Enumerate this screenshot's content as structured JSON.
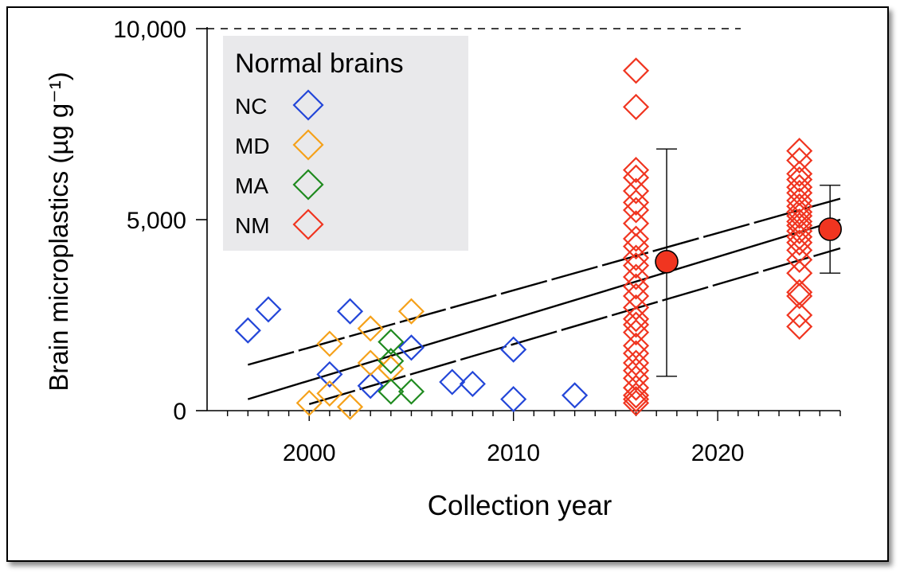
{
  "chart_data": {
    "type": "scatter",
    "xlabel": "Collection year",
    "ylabel": "Brain microplastics (µg g⁻¹)",
    "x_ticks": [
      2000,
      2010,
      2020
    ],
    "x_tick_labels": [
      "2000",
      "2010",
      "2020"
    ],
    "y_ticks": [
      0,
      5000,
      10000
    ],
    "y_tick_labels": [
      "0",
      "5,000",
      "10,000"
    ],
    "xlim": [
      1995,
      2026
    ],
    "ylim": [
      0,
      10000
    ],
    "grid": false,
    "legend": {
      "title": "Normal brains",
      "position": "top-left"
    },
    "series": [
      {
        "name": "NC",
        "color": "#2346d8",
        "marker": "diamond-open",
        "x": [
          1997,
          1998,
          2001,
          2002,
          2003,
          2005,
          2007,
          2008,
          2010,
          2010,
          2013
        ],
        "y": [
          2100,
          2650,
          950,
          2600,
          650,
          1650,
          750,
          700,
          1600,
          300,
          400
        ]
      },
      {
        "name": "MD",
        "color": "#f5a11a",
        "marker": "diamond-open",
        "x": [
          2000,
          2001,
          2001,
          2002,
          2003,
          2003,
          2004,
          2005
        ],
        "y": [
          200,
          1750,
          450,
          100,
          2150,
          1250,
          1100,
          2600
        ]
      },
      {
        "name": "MA",
        "color": "#1f8a1f",
        "marker": "diamond-open",
        "x": [
          2004,
          2004,
          2004,
          2005
        ],
        "y": [
          1800,
          1300,
          500,
          500
        ]
      },
      {
        "name": "NM",
        "color": "#f03520",
        "marker": "diamond-open",
        "x": [
          2016,
          2016,
          2016,
          2016,
          2016,
          2016,
          2016,
          2016,
          2016,
          2016,
          2016,
          2016,
          2016,
          2016,
          2016,
          2016,
          2016,
          2016,
          2016,
          2016,
          2016,
          2016,
          2016,
          2016,
          2016,
          2016,
          2016,
          2016,
          2024,
          2024,
          2024,
          2024,
          2024,
          2024,
          2024,
          2024,
          2024,
          2024,
          2024,
          2024,
          2024,
          2024,
          2024,
          2024,
          2024,
          2024,
          2024,
          2024,
          2024,
          2024
        ],
        "y": [
          8900,
          7950,
          6300,
          6100,
          5750,
          5450,
          5250,
          4900,
          4500,
          4300,
          4000,
          3800,
          3500,
          3250,
          3000,
          2700,
          2400,
          2250,
          2050,
          1700,
          1500,
          1250,
          1050,
          850,
          600,
          400,
          300,
          200,
          6800,
          6550,
          6200,
          6050,
          5850,
          5700,
          5500,
          5350,
          5200,
          5100,
          4950,
          4850,
          4700,
          4550,
          4400,
          4200,
          3950,
          3600,
          3100,
          3000,
          2500,
          2200
        ]
      }
    ],
    "summary_points": {
      "color": "#f03520",
      "points": [
        {
          "x": 2017.5,
          "y": 3900,
          "error_low": 900,
          "error_high": 6850
        },
        {
          "x": 2025.5,
          "y": 4750,
          "error_low": 3600,
          "error_high": 5900
        }
      ]
    },
    "reference_line": {
      "y": 10000,
      "style": "dashed"
    },
    "regression": {
      "x": [
        1997,
        2026
      ],
      "fit_y": [
        300,
        5000
      ],
      "upper_ci_y": [
        1200,
        5550
      ],
      "lower_ci_y": [
        -300,
        4250
      ]
    }
  }
}
